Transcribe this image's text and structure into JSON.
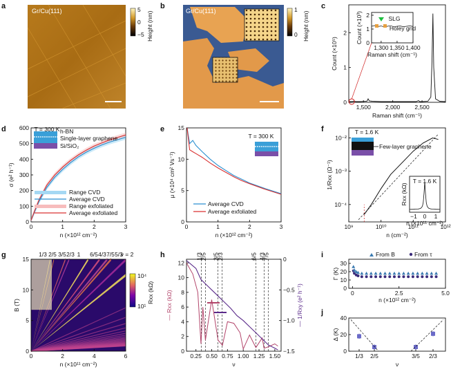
{
  "panels": {
    "a": {
      "letter": "a",
      "label": "Gr/Cu(111)",
      "cbar_label": "Height (nm)",
      "cbar_ticks": [
        "5",
        "0",
        "−5"
      ]
    },
    "b": {
      "letter": "b",
      "label": "Gr/Cu(111)",
      "cbar_label": "Height (nm)",
      "cbar_ticks": [
        "1",
        "0"
      ]
    },
    "c": {
      "letter": "c"
    },
    "d": {
      "letter": "d"
    },
    "e": {
      "letter": "e"
    },
    "f": {
      "letter": "f"
    },
    "g": {
      "letter": "g",
      "cbar_label": "Rxx (kΩ)",
      "cbar_ticks": [
        "10⁴",
        "10¹"
      ]
    },
    "h": {
      "letter": "h"
    },
    "i": {
      "letter": "i"
    },
    "j": {
      "letter": "j"
    }
  },
  "chart_data": [
    {
      "id": "c",
      "type": "line",
      "xlabel": "Raman shift (cm⁻¹)",
      "ylabel": "Count (×10⁵)",
      "xlim": [
        1250,
        2900
      ],
      "ylim": [
        0,
        2.8
      ],
      "xticks": [
        "1,500",
        "2,000",
        "2,500"
      ],
      "yticks": [
        "0",
        "1",
        "2"
      ],
      "x": [
        1250,
        1300,
        1340,
        1370,
        1450,
        1560,
        1580,
        1600,
        1650,
        1800,
        2000,
        2200,
        2400,
        2440,
        2460,
        2500,
        2600,
        2650,
        2670,
        2685,
        2700,
        2730,
        2800,
        2900
      ],
      "values": [
        0.02,
        0.02,
        0.03,
        0.02,
        0.02,
        0.03,
        0.1,
        0.04,
        0.03,
        0.02,
        0.02,
        0.02,
        0.02,
        0.05,
        0.02,
        0.02,
        0.03,
        0.15,
        1.2,
        2.55,
        1.0,
        0.1,
        0.03,
        0.02
      ],
      "inset": {
        "xlabel": "Raman shift (cm⁻¹)",
        "ylabel": "Count (×10³)",
        "xlim": [
          1270,
          1400
        ],
        "ylim": [
          0,
          2.2
        ],
        "xticks": [
          "1,300",
          "1,350",
          "1,400"
        ],
        "yticks": [
          "0",
          "1",
          "2"
        ],
        "annotations": [
          "SLG",
          "Holey grid"
        ],
        "x": [
          1270,
          1280,
          1290,
          1300,
          1310,
          1320,
          1330,
          1340,
          1350,
          1360,
          1370,
          1380,
          1390,
          1400
        ],
        "values": [
          1.2,
          1.25,
          1.18,
          1.22,
          1.15,
          1.2,
          1.24,
          1.16,
          1.2,
          1.22,
          1.17,
          1.2,
          1.23,
          1.19
        ]
      }
    },
    {
      "id": "d",
      "type": "line",
      "xlabel": "n (×10¹² cm⁻²)",
      "ylabel": "σ (e² h⁻¹)",
      "xlim": [
        0,
        3
      ],
      "ylim": [
        0,
        600
      ],
      "xticks": [
        "0",
        "1",
        "2",
        "3"
      ],
      "yticks": [
        "0",
        "100",
        "200",
        "300",
        "400",
        "500",
        "600"
      ],
      "annotations": [
        "T = 300 K",
        "h-BN",
        "Single-layer graphene",
        "Si/SiO₂"
      ],
      "x": [
        0,
        0.1,
        0.25,
        0.5,
        0.75,
        1.0,
        1.25,
        1.5,
        1.75,
        2.0,
        2.25,
        2.5,
        2.75,
        3.0
      ],
      "series": [
        {
          "name": "Average CVD",
          "values": [
            10,
            60,
            130,
            220,
            285,
            335,
            378,
            415,
            445,
            470,
            492,
            510,
            525,
            540
          ]
        },
        {
          "name": "Average exfoliated",
          "values": [
            10,
            65,
            140,
            235,
            300,
            350,
            392,
            428,
            458,
            484,
            505,
            524,
            540,
            555
          ]
        }
      ],
      "legend": [
        "Range CVD",
        "Average CVD",
        "Range exfoliated",
        "Average exfoliated"
      ]
    },
    {
      "id": "e",
      "type": "line",
      "xlabel": "n (×10¹² cm⁻²)",
      "ylabel": "μ (×10⁴ cm² Vs⁻¹)",
      "xlim": [
        0,
        3
      ],
      "ylim": [
        0,
        15
      ],
      "xticks": [
        "0",
        "1",
        "2",
        "3"
      ],
      "yticks": [
        "0",
        "5",
        "10",
        "15"
      ],
      "annotations": [
        "T = 300 K"
      ],
      "x": [
        0.02,
        0.1,
        0.2,
        0.3,
        0.5,
        0.75,
        1.0,
        1.25,
        1.5,
        1.75,
        2.0,
        2.5,
        3.0
      ],
      "series": [
        {
          "name": "Average CVD",
          "values": [
            15,
            12.5,
            13.0,
            12.2,
            11.2,
            10.0,
            9.0,
            8.2,
            7.4,
            6.8,
            6.2,
            5.3,
            4.5
          ]
        },
        {
          "name": "Average exfoliated",
          "values": [
            15,
            11.5,
            11.2,
            10.9,
            10.3,
            9.4,
            8.6,
            7.9,
            7.2,
            6.6,
            6.1,
            5.2,
            4.4
          ]
        }
      ]
    },
    {
      "id": "f",
      "type": "line",
      "xlabel": "n (cm⁻²)",
      "ylabel": "1/Rxx (Ω⁻¹)",
      "xlim": [
        1000000000.0,
        1000000000000.0
      ],
      "ylim": [
        3e-05,
        0.02
      ],
      "xscale": "log",
      "yscale": "log",
      "xticks": [
        "10⁹",
        "10¹⁰",
        "10¹¹",
        "10¹²"
      ],
      "yticks": [
        "10⁻⁴",
        "10⁻³",
        "10⁻²"
      ],
      "annotations": [
        "T = 1.6 K",
        "Few-layer graphene"
      ],
      "x": [
        3000000000.0,
        5000000000.0,
        10000000000.0,
        20000000000.0,
        50000000000.0,
        100000000000.0,
        200000000000.0,
        400000000000.0,
        600000000000.0
      ],
      "values": [
        5e-05,
        0.0001,
        0.0003,
        0.0008,
        0.002,
        0.004,
        0.007,
        0.01,
        0.009
      ],
      "inset": {
        "xlabel": "n (×10¹¹ cm⁻²)",
        "ylabel": "Rxx (kΩ)",
        "annotations": [
          "T = 1.6 K"
        ],
        "xticks": [
          "−1",
          "0",
          "1"
        ]
      }
    },
    {
      "id": "g",
      "type": "heatmap",
      "xlabel": "n (×10¹¹ cm⁻²)",
      "ylabel": "B (T)",
      "xlim": [
        0,
        6
      ],
      "ylim": [
        0,
        15
      ],
      "xticks": [
        "0",
        "2",
        "4",
        "6"
      ],
      "yticks": [
        "0",
        "5",
        "10",
        "15"
      ],
      "top_labels": [
        "1/3",
        "2/5",
        "3/5",
        "2/3",
        "1",
        "6/5",
        "4/3",
        "7/5",
        "5/3",
        "ν = 2"
      ],
      "colorbar": {
        "label": "Rxx (kΩ)",
        "min": "10¹",
        "max": "10⁴"
      }
    },
    {
      "id": "h",
      "type": "line",
      "xlabel": "ν",
      "ylabel": "Rxx (kΩ)",
      "ylabel_right": "1/Rxy (e² h⁻¹)",
      "xlim": [
        0.1,
        1.6
      ],
      "ylim": [
        0,
        12.5
      ],
      "ylim_right": [
        -1.5,
        0
      ],
      "xticks": [
        "0.25",
        "0.50",
        "0.75",
        "1.00",
        "1.25",
        "1.50"
      ],
      "yticks": [
        "0",
        "2",
        "4",
        "6",
        "8",
        "10",
        "12"
      ],
      "yticks_right": [
        "0",
        "−0.5",
        "−1.0",
        "−1.5"
      ],
      "top_labels": [
        "1/3",
        "2/5",
        "3/5",
        "2/3",
        "6/5",
        "4/3",
        "7/5"
      ],
      "series": [
        {
          "name": "Rxx",
          "x": [
            0.1,
            0.2,
            0.28,
            0.33,
            0.36,
            0.4,
            0.5,
            0.6,
            0.67,
            0.75,
            0.85,
            0.95,
            1.0,
            1.1,
            1.2,
            1.3,
            1.33,
            1.4,
            1.5,
            1.55
          ],
          "values": [
            12,
            10.5,
            8,
            1.0,
            6,
            1.5,
            7,
            1.5,
            0.8,
            4,
            3.8,
            2.5,
            0.3,
            2.2,
            0.5,
            1.8,
            0.4,
            0.6,
            1.0,
            0.7
          ]
        },
        {
          "name": "1/Rxy",
          "x": [
            0.1,
            0.25,
            0.33,
            0.4,
            0.5,
            0.6,
            0.67,
            0.8,
            0.9,
            1.0,
            1.1,
            1.2,
            1.33,
            1.4,
            1.5,
            1.55
          ],
          "values": [
            -0.02,
            -0.15,
            -0.33,
            -0.4,
            -0.5,
            -0.6,
            -0.67,
            -0.8,
            -0.92,
            -1.0,
            -1.1,
            -1.2,
            -1.33,
            -1.4,
            -1.45,
            -1.48
          ]
        }
      ]
    },
    {
      "id": "i",
      "type": "scatter",
      "xlabel": "n (×10¹² cm⁻²)",
      "ylabel": "Γ (K)",
      "xlim": [
        -0.2,
        5
      ],
      "ylim": [
        0,
        35
      ],
      "xticks": [
        "0",
        "2.5",
        "5.0"
      ],
      "yticks": [
        "0",
        "10",
        "20",
        "30"
      ],
      "x": [
        0.05,
        0.1,
        0.2,
        0.3,
        0.5,
        0.75,
        1.0,
        1.25,
        1.5,
        1.75,
        2.0,
        2.25,
        2.5,
        2.75,
        3.0,
        3.25,
        3.5,
        3.75,
        4.0,
        4.25,
        4.5
      ],
      "series": [
        {
          "name": "From B_onset",
          "values": [
            26,
            22,
            20,
            19,
            18,
            18,
            18,
            18,
            18,
            18,
            18,
            18,
            18,
            18,
            18,
            18,
            18,
            18,
            18,
            18,
            18
          ]
        },
        {
          "name": "From τq",
          "values": [
            21,
            18,
            16,
            15,
            14,
            14,
            14,
            14,
            14,
            14,
            14,
            14,
            14,
            14,
            14,
            14,
            14,
            14,
            14,
            14,
            14
          ]
        }
      ]
    },
    {
      "id": "j",
      "type": "scatter",
      "xlabel": "ν",
      "ylabel": "Δ (K)",
      "ylim": [
        0,
        40
      ],
      "yticks": [
        "0",
        "20",
        "40"
      ],
      "categories": [
        "1/3",
        "2/5",
        "3/5",
        "2/3"
      ],
      "values": [
        18,
        5,
        5,
        21
      ]
    }
  ]
}
